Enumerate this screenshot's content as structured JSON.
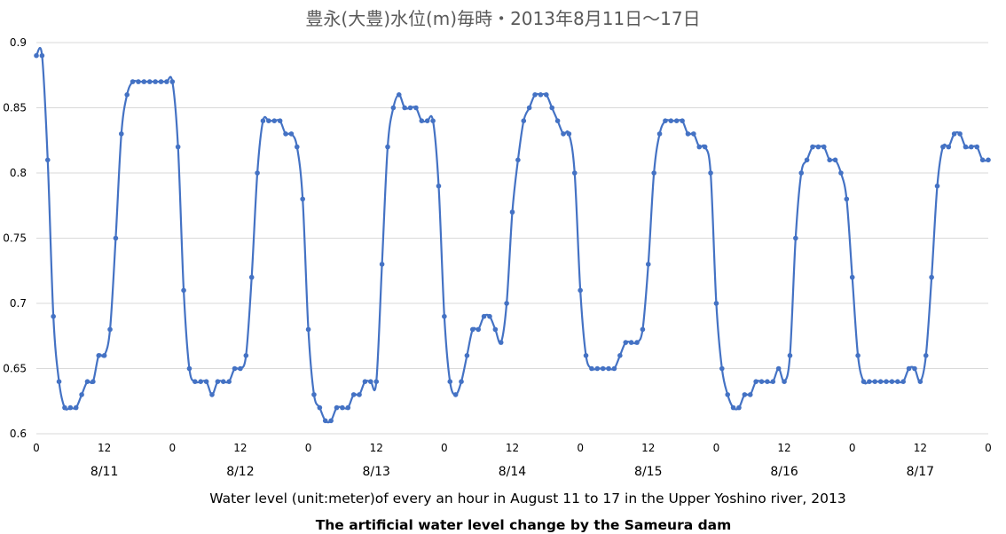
{
  "chart_data": {
    "type": "line",
    "title": "豊永(大豊)水位(m)毎時・2013年8月11日～17日",
    "subtitle": "Water level (unit:meter)of every an hour in August 11 to 17  in the Upper Yoshino river, 2013",
    "caption": "The artificial water level change by the Sameura dam",
    "ylim": [
      0.6,
      0.9
    ],
    "y_ticks": [
      "0.6",
      "0.65",
      "0.7",
      "0.75",
      "0.8",
      "0.85",
      "0.9"
    ],
    "x_ticks": [
      "0",
      "12",
      "0",
      "12",
      "0",
      "12",
      "0",
      "12",
      "0",
      "12",
      "0",
      "12",
      "0",
      "12",
      "0"
    ],
    "days": [
      "8/11",
      "8/12",
      "8/13",
      "8/14",
      "8/15",
      "8/16",
      "8/17"
    ],
    "grid": true,
    "legend": "none",
    "color": "#4472c4",
    "series": [
      {
        "values": [
          0.89,
          0.89,
          0.81,
          0.69,
          0.64,
          0.62,
          0.62,
          0.62,
          0.63,
          0.64,
          0.64,
          0.66,
          0.66,
          0.68,
          0.75,
          0.83,
          0.86,
          0.87,
          0.87,
          0.87,
          0.87,
          0.87,
          0.87,
          0.87,
          0.87,
          0.82,
          0.71,
          0.65,
          0.64,
          0.64,
          0.64,
          0.63,
          0.64,
          0.64,
          0.64,
          0.65,
          0.65,
          0.66,
          0.72,
          0.8,
          0.84,
          0.84,
          0.84,
          0.84,
          0.83,
          0.83,
          0.82,
          0.78,
          0.68,
          0.63,
          0.62,
          0.61,
          0.61,
          0.62,
          0.62,
          0.62,
          0.63,
          0.63,
          0.64,
          0.64,
          0.64,
          0.73,
          0.82,
          0.85,
          0.86,
          0.85,
          0.85,
          0.85,
          0.84,
          0.84,
          0.84,
          0.79,
          0.69,
          0.64,
          0.63,
          0.64,
          0.66,
          0.68,
          0.68,
          0.69,
          0.69,
          0.68,
          0.67,
          0.7,
          0.77,
          0.81,
          0.84,
          0.85,
          0.86,
          0.86,
          0.86,
          0.85,
          0.84,
          0.83,
          0.83,
          0.8,
          0.71,
          0.66,
          0.65,
          0.65,
          0.65,
          0.65,
          0.65,
          0.66,
          0.67,
          0.67,
          0.67,
          0.68,
          0.73,
          0.8,
          0.83,
          0.84,
          0.84,
          0.84,
          0.84,
          0.83,
          0.83,
          0.82,
          0.82,
          0.8,
          0.7,
          0.65,
          0.63,
          0.62,
          0.62,
          0.63,
          0.63,
          0.64,
          0.64,
          0.64,
          0.64,
          0.65,
          0.64,
          0.66,
          0.75,
          0.8,
          0.81,
          0.82,
          0.82,
          0.82,
          0.81,
          0.81,
          0.8,
          0.78,
          0.72,
          0.66,
          0.64,
          0.64,
          0.64,
          0.64,
          0.64,
          0.64,
          0.64,
          0.64,
          0.65,
          0.65,
          0.64,
          0.66,
          0.72,
          0.79,
          0.82,
          0.82,
          0.83,
          0.83,
          0.82,
          0.82,
          0.82,
          0.81,
          0.81
        ]
      }
    ]
  }
}
